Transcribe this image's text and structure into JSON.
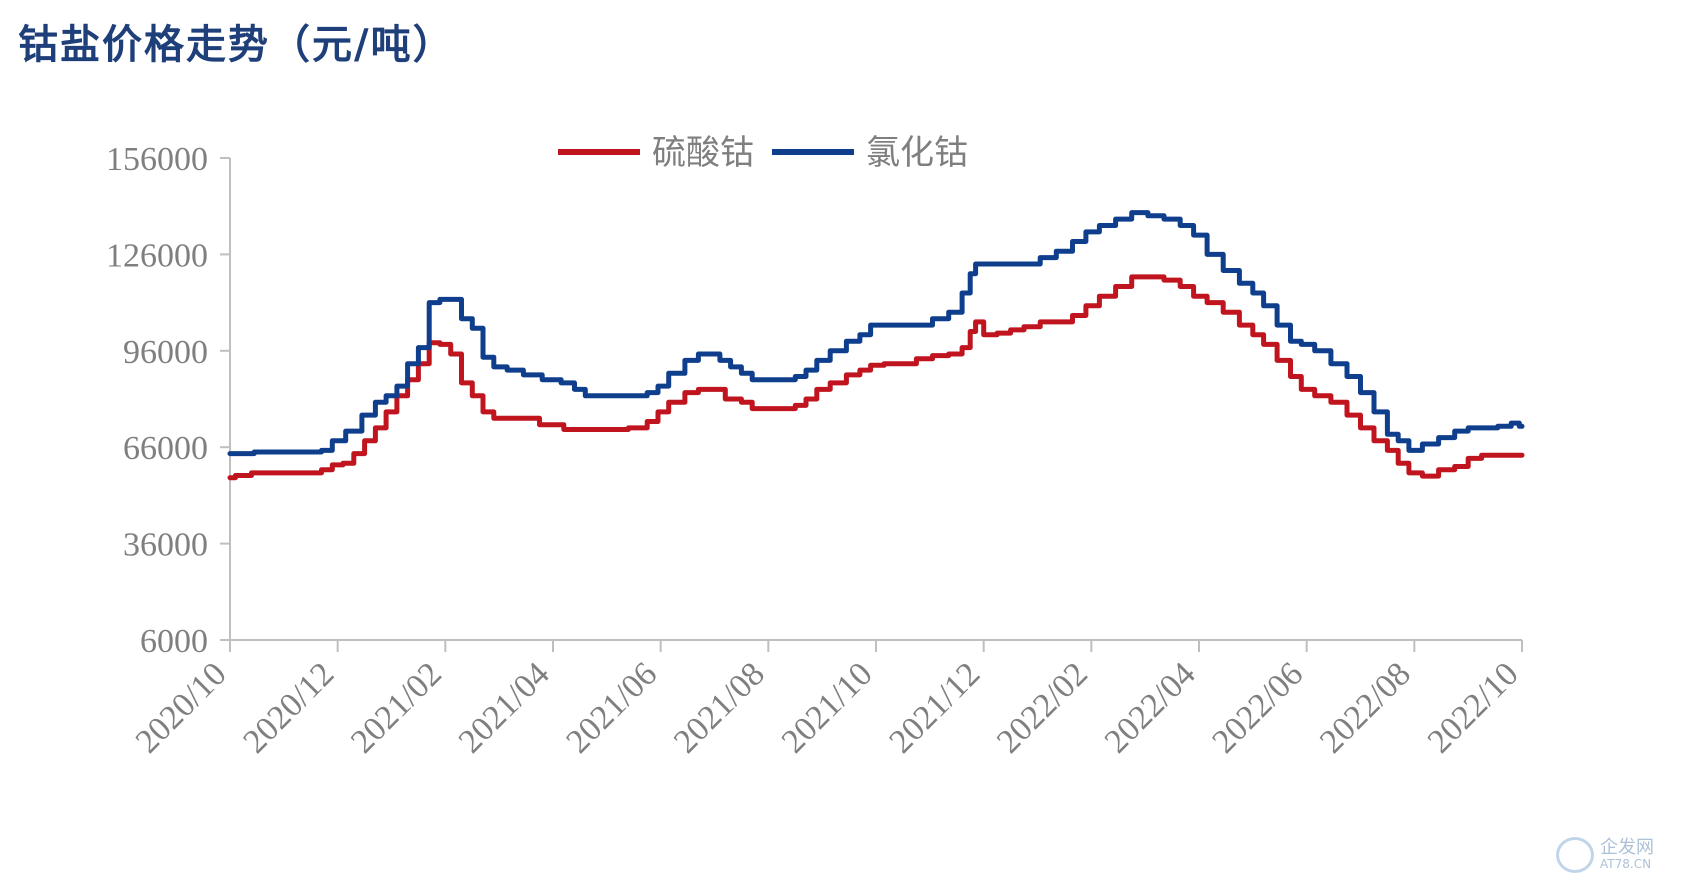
{
  "title": "钴盐价格走势（元/吨）",
  "watermark": {
    "name": "企发网",
    "site": "AT78.CN"
  },
  "colors": {
    "series1": "#c0151f",
    "series2": "#0f3f8c",
    "axis": "#bfbfbf",
    "label": "#7f7f7f"
  },
  "chart_data": {
    "type": "line",
    "title": "钴盐价格走势（元/吨）",
    "xlabel": "",
    "ylabel": "",
    "ylim": [
      6000,
      156000
    ],
    "yticks": [
      "156000",
      "126000",
      "96000",
      "66000",
      "36000",
      "6000"
    ],
    "yticks_values": [
      156000,
      126000,
      96000,
      66000,
      36000,
      6000
    ],
    "xlim": [
      0,
      24
    ],
    "xticks": [
      "2020/10",
      "2020/12",
      "2021/02",
      "2021/04",
      "2021/06",
      "2021/08",
      "2021/10",
      "2021/12",
      "2022/02",
      "2022/04",
      "2022/06",
      "2022/08",
      "2022/10"
    ],
    "xticks_values": [
      0,
      2,
      4,
      6,
      8,
      10,
      12,
      14,
      16,
      18,
      20,
      22,
      24
    ],
    "legend_position": "top-center",
    "series": [
      {
        "name": "硫酸钴",
        "color": "#c0151f",
        "x": [
          0,
          0.2,
          0.6,
          1.0,
          1.6,
          1.8,
          2.0,
          2.2,
          2.4,
          2.6,
          2.8,
          3.0,
          3.2,
          3.4,
          3.6,
          3.8,
          4.0,
          4.2,
          4.4,
          4.6,
          4.8,
          5.0,
          5.5,
          6.0,
          6.4,
          6.8,
          7.2,
          7.6,
          7.9,
          8.0,
          8.3,
          8.6,
          8.8,
          9.0,
          9.4,
          9.6,
          9.8,
          10.0,
          10.4,
          10.6,
          10.8,
          11.0,
          11.3,
          11.6,
          11.8,
          12.0,
          12.3,
          12.6,
          12.9,
          13.2,
          13.5,
          13.7,
          13.8,
          13.9,
          14.1,
          14.4,
          14.6,
          14.9,
          15.2,
          15.5,
          15.8,
          16.0,
          16.3,
          16.6,
          16.9,
          17.2,
          17.5,
          17.8,
          18.0,
          18.3,
          18.6,
          18.9,
          19.1,
          19.3,
          19.6,
          19.8,
          20.0,
          20.3,
          20.6,
          20.9,
          21.1,
          21.4,
          21.6,
          21.8,
          22.0,
          22.3,
          22.6,
          22.9,
          23.1,
          23.4,
          23.7,
          23.9,
          24.0
        ],
        "values": [
          56500,
          57200,
          58000,
          58000,
          58000,
          59000,
          60500,
          61000,
          64000,
          68000,
          72000,
          77000,
          82000,
          87000,
          92000,
          98500,
          98000,
          95000,
          86000,
          82000,
          77000,
          75000,
          75000,
          73000,
          71500,
          71500,
          71500,
          72000,
          74000,
          77000,
          80000,
          83000,
          84000,
          84000,
          81000,
          80000,
          78000,
          78000,
          78000,
          79000,
          81000,
          84000,
          86000,
          88500,
          90000,
          91500,
          92000,
          92000,
          93500,
          94500,
          95000,
          97000,
          102000,
          105000,
          101000,
          101500,
          102500,
          103500,
          105000,
          105000,
          107000,
          110000,
          113000,
          116000,
          119000,
          119000,
          118000,
          116000,
          113000,
          111000,
          108000,
          104000,
          101000,
          98000,
          93000,
          88000,
          84000,
          82000,
          80000,
          76000,
          72000,
          68000,
          65000,
          61000,
          58000,
          57000,
          59000,
          60000,
          62500,
          63500,
          63500,
          63500,
          63500
        ]
      },
      {
        "name": "氯化钴",
        "color": "#0f3f8c",
        "x": [
          0,
          0.3,
          0.6,
          1.0,
          1.6,
          1.8,
          2.0,
          2.3,
          2.6,
          2.8,
          3.0,
          3.2,
          3.4,
          3.6,
          3.8,
          4.0,
          4.2,
          4.4,
          4.6,
          4.8,
          5.0,
          5.3,
          5.6,
          6.0,
          6.3,
          6.5,
          6.7,
          6.9,
          7.2,
          7.6,
          7.9,
          8.0,
          8.3,
          8.6,
          8.8,
          9.0,
          9.2,
          9.4,
          9.6,
          9.8,
          10.0,
          10.4,
          10.6,
          10.8,
          11.0,
          11.3,
          11.6,
          11.8,
          12.0,
          12.3,
          12.6,
          12.9,
          13.2,
          13.5,
          13.7,
          13.8,
          13.9,
          14.1,
          14.4,
          14.6,
          14.9,
          15.2,
          15.5,
          15.8,
          16.0,
          16.3,
          16.6,
          16.9,
          17.2,
          17.5,
          17.8,
          18.0,
          18.3,
          18.6,
          18.9,
          19.1,
          19.3,
          19.6,
          19.8,
          20.0,
          20.3,
          20.6,
          20.9,
          21.1,
          21.4,
          21.6,
          21.8,
          22.0,
          22.3,
          22.6,
          22.9,
          23.1,
          23.4,
          23.7,
          23.9,
          24.0
        ],
        "values": [
          64000,
          64000,
          64500,
          64500,
          64500,
          65000,
          68000,
          71000,
          76000,
          80000,
          82000,
          85000,
          92000,
          97000,
          111000,
          112000,
          112000,
          106000,
          103000,
          94000,
          91000,
          90000,
          88500,
          87000,
          86000,
          84000,
          82000,
          82000,
          82000,
          82000,
          83000,
          85000,
          89000,
          93000,
          95000,
          95000,
          93000,
          91000,
          89000,
          87000,
          87000,
          87000,
          88000,
          90000,
          93000,
          96000,
          99000,
          101000,
          104000,
          104000,
          104000,
          104000,
          106000,
          108000,
          114000,
          120000,
          123000,
          123000,
          123000,
          123000,
          123000,
          125000,
          127000,
          130000,
          133000,
          135000,
          137000,
          139000,
          138000,
          137000,
          135000,
          132000,
          126000,
          121000,
          117000,
          114000,
          110000,
          104000,
          99000,
          98000,
          96000,
          92000,
          88000,
          83000,
          77000,
          70000,
          68000,
          65000,
          67000,
          69000,
          71000,
          72000,
          72000,
          72500,
          73500,
          72500
        ]
      }
    ]
  }
}
